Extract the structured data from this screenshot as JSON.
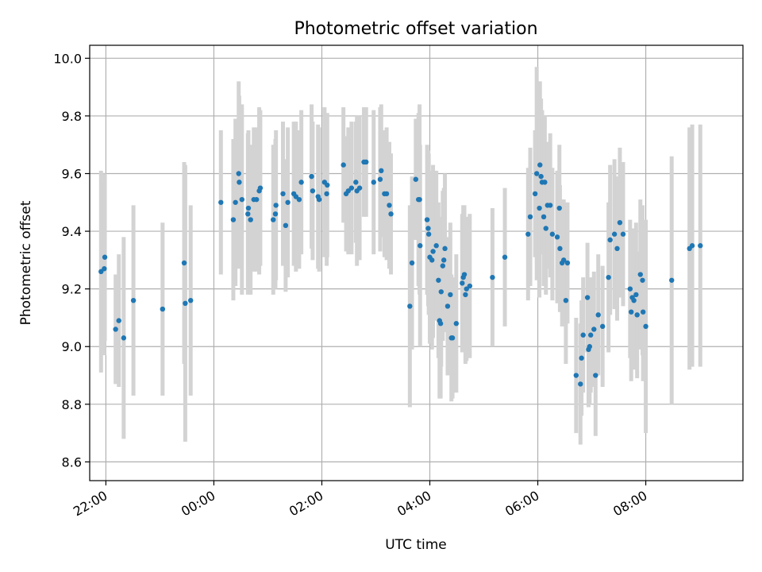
{
  "chart_data": {
    "type": "scatter",
    "title": "Photometric offset variation",
    "xlabel": "UTC time",
    "ylabel": "Photometric offset",
    "x_axis": {
      "unit": "hours since 22:00 UTC",
      "range": [
        -0.3,
        11.8
      ],
      "ticks": [
        {
          "x": 0,
          "label": "22:00"
        },
        {
          "x": 2,
          "label": "00:00"
        },
        {
          "x": 4,
          "label": "02:00"
        },
        {
          "x": 6,
          "label": "04:00"
        },
        {
          "x": 8,
          "label": "06:00"
        },
        {
          "x": 10,
          "label": "08:00"
        }
      ]
    },
    "y_axis": {
      "range": [
        8.535,
        10.045
      ],
      "ticks": [
        {
          "y": 8.6,
          "label": "8.6"
        },
        {
          "y": 8.8,
          "label": "8.8"
        },
        {
          "y": 9.0,
          "label": "9.0"
        },
        {
          "y": 9.2,
          "label": "9.2"
        },
        {
          "y": 9.4,
          "label": "9.4"
        },
        {
          "y": 9.6,
          "label": "9.6"
        },
        {
          "y": 9.8,
          "label": "9.8"
        },
        {
          "y": 10.0,
          "label": "10.0"
        }
      ]
    },
    "grid": true,
    "colors": {
      "marker": "#1f77b4",
      "errorbar": "#d3d3d3",
      "grid": "#b0b0b0"
    },
    "points": [
      {
        "x": -0.09,
        "y": 9.26,
        "err": 0.35
      },
      {
        "x": -0.03,
        "y": 9.27,
        "err": 0.3
      },
      {
        "x": -0.02,
        "y": 9.31,
        "err": 0.29
      },
      {
        "x": 0.18,
        "y": 9.06,
        "err": 0.19
      },
      {
        "x": 0.24,
        "y": 9.09,
        "err": 0.23
      },
      {
        "x": 0.33,
        "y": 9.03,
        "err": 0.35
      },
      {
        "x": 0.51,
        "y": 9.16,
        "err": 0.33
      },
      {
        "x": 1.05,
        "y": 9.13,
        "err": 0.3
      },
      {
        "x": 1.45,
        "y": 9.29,
        "err": 0.35
      },
      {
        "x": 1.47,
        "y": 9.15,
        "err": 0.48
      },
      {
        "x": 1.57,
        "y": 9.16,
        "err": 0.33
      },
      {
        "x": 2.13,
        "y": 9.5,
        "err": 0.25
      },
      {
        "x": 2.36,
        "y": 9.44,
        "err": 0.28
      },
      {
        "x": 2.4,
        "y": 9.5,
        "err": 0.29
      },
      {
        "x": 2.46,
        "y": 9.6,
        "err": 0.32
      },
      {
        "x": 2.47,
        "y": 9.57,
        "err": 0.3
      },
      {
        "x": 2.52,
        "y": 9.51,
        "err": 0.33
      },
      {
        "x": 2.63,
        "y": 9.46,
        "err": 0.28
      },
      {
        "x": 2.64,
        "y": 9.48,
        "err": 0.27
      },
      {
        "x": 2.68,
        "y": 9.44,
        "err": 0.26
      },
      {
        "x": 2.74,
        "y": 9.51,
        "err": 0.25
      },
      {
        "x": 2.79,
        "y": 9.51,
        "err": 0.25
      },
      {
        "x": 2.84,
        "y": 9.54,
        "err": 0.29
      },
      {
        "x": 2.86,
        "y": 9.55,
        "err": 0.27
      },
      {
        "x": 3.1,
        "y": 9.44,
        "err": 0.26
      },
      {
        "x": 3.14,
        "y": 9.46,
        "err": 0.26
      },
      {
        "x": 3.15,
        "y": 9.49,
        "err": 0.26
      },
      {
        "x": 3.28,
        "y": 9.53,
        "err": 0.25
      },
      {
        "x": 3.33,
        "y": 9.42,
        "err": 0.23
      },
      {
        "x": 3.37,
        "y": 9.5,
        "err": 0.26
      },
      {
        "x": 3.48,
        "y": 9.53,
        "err": 0.25
      },
      {
        "x": 3.52,
        "y": 9.52,
        "err": 0.26
      },
      {
        "x": 3.58,
        "y": 9.51,
        "err": 0.24
      },
      {
        "x": 3.62,
        "y": 9.57,
        "err": 0.25
      },
      {
        "x": 3.81,
        "y": 9.59,
        "err": 0.25
      },
      {
        "x": 3.83,
        "y": 9.54,
        "err": 0.24
      },
      {
        "x": 3.93,
        "y": 9.52,
        "err": 0.25
      },
      {
        "x": 3.95,
        "y": 9.51,
        "err": 0.25
      },
      {
        "x": 4.05,
        "y": 9.57,
        "err": 0.26
      },
      {
        "x": 4.09,
        "y": 9.53,
        "err": 0.25
      },
      {
        "x": 4.1,
        "y": 9.56,
        "err": 0.25
      },
      {
        "x": 4.4,
        "y": 9.63,
        "err": 0.2
      },
      {
        "x": 4.45,
        "y": 9.53,
        "err": 0.2
      },
      {
        "x": 4.49,
        "y": 9.54,
        "err": 0.22
      },
      {
        "x": 4.55,
        "y": 9.55,
        "err": 0.23
      },
      {
        "x": 4.63,
        "y": 9.57,
        "err": 0.21
      },
      {
        "x": 4.65,
        "y": 9.54,
        "err": 0.26
      },
      {
        "x": 4.7,
        "y": 9.55,
        "err": 0.25
      },
      {
        "x": 4.78,
        "y": 9.64,
        "err": 0.19
      },
      {
        "x": 4.82,
        "y": 9.64,
        "err": 0.19
      },
      {
        "x": 4.96,
        "y": 9.57,
        "err": 0.25
      },
      {
        "x": 5.08,
        "y": 9.58,
        "err": 0.25
      },
      {
        "x": 5.1,
        "y": 9.61,
        "err": 0.23
      },
      {
        "x": 5.16,
        "y": 9.53,
        "err": 0.22
      },
      {
        "x": 5.2,
        "y": 9.53,
        "err": 0.23
      },
      {
        "x": 5.25,
        "y": 9.49,
        "err": 0.22
      },
      {
        "x": 5.28,
        "y": 9.46,
        "err": 0.21
      },
      {
        "x": 5.63,
        "y": 9.14,
        "err": 0.35
      },
      {
        "x": 5.67,
        "y": 9.29,
        "err": 0.3
      },
      {
        "x": 5.74,
        "y": 9.58,
        "err": 0.21
      },
      {
        "x": 5.79,
        "y": 9.51,
        "err": 0.3
      },
      {
        "x": 5.81,
        "y": 9.51,
        "err": 0.33
      },
      {
        "x": 5.82,
        "y": 9.35,
        "err": 0.35
      },
      {
        "x": 5.95,
        "y": 9.44,
        "err": 0.26
      },
      {
        "x": 5.97,
        "y": 9.41,
        "err": 0.27
      },
      {
        "x": 5.98,
        "y": 9.39,
        "err": 0.28
      },
      {
        "x": 6.0,
        "y": 9.31,
        "err": 0.3
      },
      {
        "x": 6.04,
        "y": 9.3,
        "err": 0.31
      },
      {
        "x": 6.06,
        "y": 9.33,
        "err": 0.3
      },
      {
        "x": 6.12,
        "y": 9.35,
        "err": 0.26
      },
      {
        "x": 6.16,
        "y": 9.23,
        "err": 0.27
      },
      {
        "x": 6.18,
        "y": 9.09,
        "err": 0.27
      },
      {
        "x": 6.2,
        "y": 9.08,
        "err": 0.26
      },
      {
        "x": 6.21,
        "y": 9.19,
        "err": 0.26
      },
      {
        "x": 6.24,
        "y": 9.28,
        "err": 0.26
      },
      {
        "x": 6.26,
        "y": 9.3,
        "err": 0.25
      },
      {
        "x": 6.28,
        "y": 9.34,
        "err": 0.26
      },
      {
        "x": 6.33,
        "y": 9.14,
        "err": 0.24
      },
      {
        "x": 6.38,
        "y": 9.18,
        "err": 0.25
      },
      {
        "x": 6.4,
        "y": 9.03,
        "err": 0.22
      },
      {
        "x": 6.42,
        "y": 9.03,
        "err": 0.21
      },
      {
        "x": 6.49,
        "y": 9.08,
        "err": 0.24
      },
      {
        "x": 6.6,
        "y": 9.22,
        "err": 0.24
      },
      {
        "x": 6.62,
        "y": 9.24,
        "err": 0.25
      },
      {
        "x": 6.64,
        "y": 9.25,
        "err": 0.24
      },
      {
        "x": 6.66,
        "y": 9.18,
        "err": 0.24
      },
      {
        "x": 6.68,
        "y": 9.2,
        "err": 0.25
      },
      {
        "x": 6.74,
        "y": 9.21,
        "err": 0.25
      },
      {
        "x": 7.16,
        "y": 9.24,
        "err": 0.24
      },
      {
        "x": 7.39,
        "y": 9.31,
        "err": 0.24
      },
      {
        "x": 7.82,
        "y": 9.39,
        "err": 0.23
      },
      {
        "x": 7.86,
        "y": 9.45,
        "err": 0.24
      },
      {
        "x": 7.95,
        "y": 9.53,
        "err": 0.22
      },
      {
        "x": 7.98,
        "y": 9.6,
        "err": 0.37
      },
      {
        "x": 8.03,
        "y": 9.48,
        "err": 0.31
      },
      {
        "x": 8.04,
        "y": 9.63,
        "err": 0.29
      },
      {
        "x": 8.06,
        "y": 9.59,
        "err": 0.27
      },
      {
        "x": 8.08,
        "y": 9.57,
        "err": 0.25
      },
      {
        "x": 8.11,
        "y": 9.45,
        "err": 0.24
      },
      {
        "x": 8.13,
        "y": 9.57,
        "err": 0.23
      },
      {
        "x": 8.15,
        "y": 9.41,
        "err": 0.23
      },
      {
        "x": 8.18,
        "y": 9.49,
        "err": 0.22
      },
      {
        "x": 8.23,
        "y": 9.49,
        "err": 0.25
      },
      {
        "x": 8.27,
        "y": 9.39,
        "err": 0.23
      },
      {
        "x": 8.36,
        "y": 9.38,
        "err": 0.23
      },
      {
        "x": 8.4,
        "y": 9.48,
        "err": 0.22
      },
      {
        "x": 8.41,
        "y": 9.34,
        "err": 0.22
      },
      {
        "x": 8.45,
        "y": 9.29,
        "err": 0.22
      },
      {
        "x": 8.48,
        "y": 9.3,
        "err": 0.21
      },
      {
        "x": 8.52,
        "y": 9.16,
        "err": 0.22
      },
      {
        "x": 8.55,
        "y": 9.29,
        "err": 0.21
      },
      {
        "x": 8.71,
        "y": 8.9,
        "err": 0.2
      },
      {
        "x": 8.79,
        "y": 8.87,
        "err": 0.21
      },
      {
        "x": 8.81,
        "y": 8.96,
        "err": 0.2
      },
      {
        "x": 8.84,
        "y": 9.04,
        "err": 0.2
      },
      {
        "x": 8.92,
        "y": 9.17,
        "err": 0.19
      },
      {
        "x": 8.94,
        "y": 8.99,
        "err": 0.2
      },
      {
        "x": 8.96,
        "y": 9.0,
        "err": 0.2
      },
      {
        "x": 8.98,
        "y": 9.04,
        "err": 0.2
      },
      {
        "x": 9.04,
        "y": 9.06,
        "err": 0.2
      },
      {
        "x": 9.07,
        "y": 8.9,
        "err": 0.21
      },
      {
        "x": 9.12,
        "y": 9.11,
        "err": 0.21
      },
      {
        "x": 9.2,
        "y": 9.07,
        "err": 0.21
      },
      {
        "x": 9.31,
        "y": 9.24,
        "err": 0.26
      },
      {
        "x": 9.34,
        "y": 9.37,
        "err": 0.26
      },
      {
        "x": 9.42,
        "y": 9.39,
        "err": 0.26
      },
      {
        "x": 9.47,
        "y": 9.34,
        "err": 0.25
      },
      {
        "x": 9.52,
        "y": 9.43,
        "err": 0.26
      },
      {
        "x": 9.58,
        "y": 9.39,
        "err": 0.25
      },
      {
        "x": 9.71,
        "y": 9.2,
        "err": 0.24
      },
      {
        "x": 9.73,
        "y": 9.12,
        "err": 0.24
      },
      {
        "x": 9.75,
        "y": 9.17,
        "err": 0.24
      },
      {
        "x": 9.78,
        "y": 9.16,
        "err": 0.24
      },
      {
        "x": 9.82,
        "y": 9.18,
        "err": 0.25
      },
      {
        "x": 9.84,
        "y": 9.11,
        "err": 0.22
      },
      {
        "x": 9.9,
        "y": 9.25,
        "err": 0.26
      },
      {
        "x": 9.94,
        "y": 9.23,
        "err": 0.26
      },
      {
        "x": 9.95,
        "y": 9.12,
        "err": 0.24
      },
      {
        "x": 10.0,
        "y": 9.07,
        "err": 0.37
      },
      {
        "x": 10.48,
        "y": 9.23,
        "err": 0.43
      },
      {
        "x": 10.81,
        "y": 9.34,
        "err": 0.42
      },
      {
        "x": 10.86,
        "y": 9.35,
        "err": 0.42
      },
      {
        "x": 11.01,
        "y": 9.35,
        "err": 0.42
      }
    ]
  }
}
